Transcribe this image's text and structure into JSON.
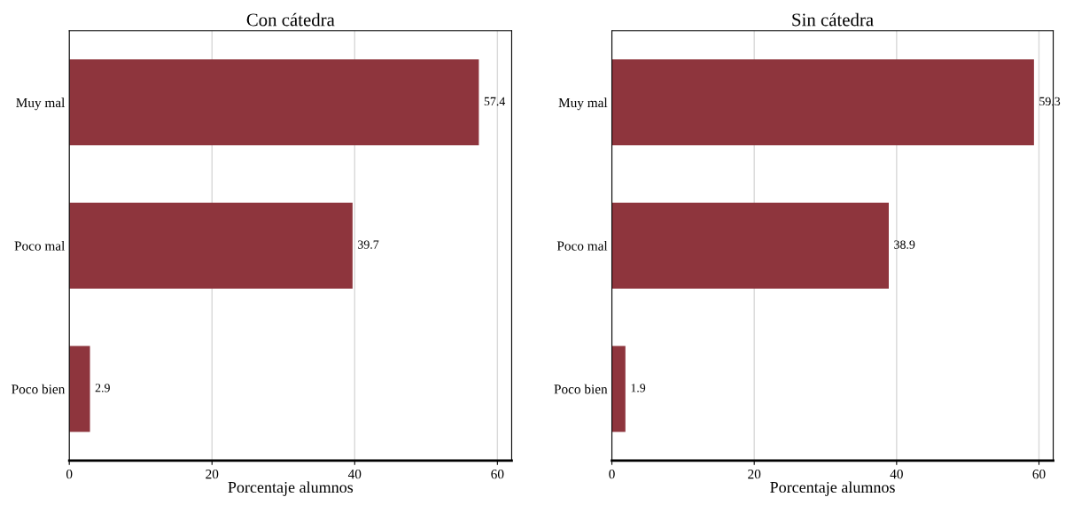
{
  "chart_data": [
    {
      "type": "bar",
      "orientation": "horizontal",
      "title": "Con cátedra",
      "xlabel": "Porcentaje alumnos",
      "categories": [
        "Muy mal",
        "Poco mal",
        "Poco bien"
      ],
      "values": [
        57.4,
        39.7,
        2.9
      ],
      "color": "#8e353d",
      "xlim": [
        0,
        62
      ],
      "xticks": [
        0,
        20,
        40,
        60
      ],
      "grid": "x",
      "data_labels": true
    },
    {
      "type": "bar",
      "orientation": "horizontal",
      "title": "Sin cátedra",
      "xlabel": "Porcentaje alumnos",
      "categories": [
        "Muy mal",
        "Poco mal",
        "Poco bien"
      ],
      "values": [
        59.3,
        38.9,
        1.9
      ],
      "color": "#8e353d",
      "xlim": [
        0,
        62
      ],
      "xticks": [
        0,
        20,
        40,
        60
      ],
      "grid": "x",
      "data_labels": true
    }
  ]
}
